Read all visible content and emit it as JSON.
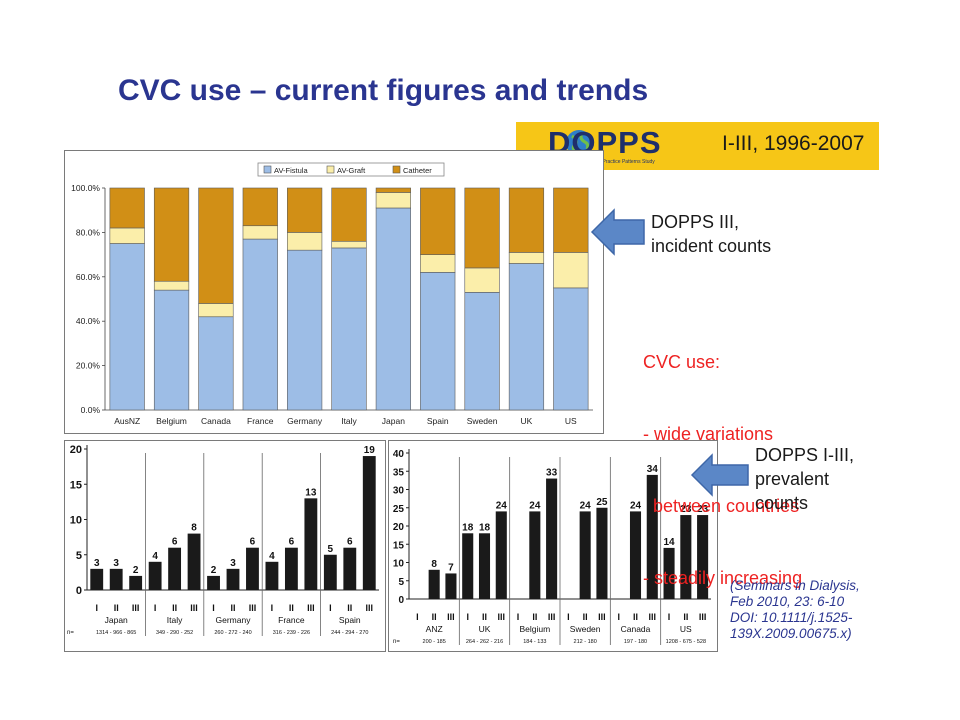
{
  "slide": {
    "title": "CVC use – current figures and trends",
    "logo_text": "DOPPS",
    "logo_subtitle": "Dialysis Outcomes and Practice Patterns Study",
    "logo_range": "I-III, 1996-2007",
    "note_incident": [
      "DOPPS III,",
      "incident counts"
    ],
    "note_cvc": [
      "CVC use:",
      "- wide variations",
      "  between countries",
      "- steadily increasing"
    ],
    "note_prevalent": [
      "DOPPS I-III,",
      "prevalent",
      "counts"
    ],
    "citation": [
      "(Seminars in Dialysis,",
      "Feb 2010, 23: 6-10",
      "DOI: 10.1111/j.1525-",
      "139X.2009.00675.x)"
    ]
  },
  "colors": {
    "fistula": "#9dbde6",
    "graft": "#fbeeaa",
    "catheter": "#d18f16",
    "bars": "#1a1a1a",
    "arrow": "#5b87c7",
    "title": "#2a3590",
    "red": "#ee2222"
  },
  "chart_data": [
    {
      "type": "bar",
      "stacked": true,
      "title": "",
      "categories": [
        "AusNZ",
        "Belgium",
        "Canada",
        "France",
        "Germany",
        "Italy",
        "Japan",
        "Spain",
        "Sweden",
        "UK",
        "US"
      ],
      "series": [
        {
          "name": "AV-Fistula",
          "values": [
            75,
            54,
            42,
            77,
            72,
            73,
            91,
            62,
            53,
            66,
            55
          ]
        },
        {
          "name": "AV-Graft",
          "values": [
            7,
            4,
            6,
            6,
            8,
            3,
            7,
            8,
            11,
            5,
            16
          ]
        },
        {
          "name": "Catheter",
          "values": [
            18,
            42,
            52,
            17,
            20,
            24,
            2,
            30,
            36,
            29,
            29
          ]
        }
      ],
      "y_ticks": [
        "0.0%",
        "20.0%",
        "40.0%",
        "60.0%",
        "80.0%",
        "100.0%"
      ],
      "ylim": [
        0,
        100
      ],
      "legend_position": "top-center",
      "grid": false
    },
    {
      "type": "bar",
      "title": "",
      "groups": [
        {
          "name": "Japan",
          "labels": [
            "I",
            "II",
            "III"
          ],
          "values": [
            3,
            3,
            2
          ],
          "n": "1314 - 966 - 865"
        },
        {
          "name": "Italy",
          "labels": [
            "I",
            "II",
            "III"
          ],
          "values": [
            4,
            6,
            8
          ],
          "n": "349 - 290 - 252"
        },
        {
          "name": "Germany",
          "labels": [
            "I",
            "II",
            "III"
          ],
          "values": [
            2,
            3,
            6
          ],
          "n": "260 - 272 - 240"
        },
        {
          "name": "France",
          "labels": [
            "I",
            "II",
            "III"
          ],
          "values": [
            4,
            6,
            13
          ],
          "n": "316 - 239 - 226"
        },
        {
          "name": "Spain",
          "labels": [
            "I",
            "II",
            "III"
          ],
          "values": [
            5,
            6,
            19
          ],
          "n": "244 - 294 - 270"
        }
      ],
      "n_prefix": "n=",
      "y_ticks": [
        "0",
        "5",
        "10",
        "15",
        "20"
      ],
      "ylim": [
        0,
        20
      ]
    },
    {
      "type": "bar",
      "title": "",
      "groups": [
        {
          "name": "ANZ",
          "labels": [
            "I",
            "II",
            "III"
          ],
          "values": [
            null,
            8,
            7
          ],
          "n": "200 - 185"
        },
        {
          "name": "UK",
          "labels": [
            "I",
            "II",
            "III"
          ],
          "values": [
            18,
            18,
            24
          ],
          "n": "264 - 262 - 216"
        },
        {
          "name": "Belgium",
          "labels": [
            "I",
            "II",
            "III"
          ],
          "values": [
            null,
            24,
            33
          ],
          "n": "184 - 133"
        },
        {
          "name": "Sweden",
          "labels": [
            "I",
            "II",
            "III"
          ],
          "values": [
            null,
            24,
            25
          ],
          "n": "212 - 180"
        },
        {
          "name": "Canada",
          "labels": [
            "I",
            "II",
            "III"
          ],
          "values": [
            null,
            24,
            34
          ],
          "n": "197 - 180"
        },
        {
          "name": "US",
          "labels": [
            "I",
            "II",
            "III"
          ],
          "values": [
            14,
            23,
            23
          ],
          "n": "1208 - 675 - 528"
        }
      ],
      "n_prefix": "n=",
      "y_ticks": [
        "0",
        "5",
        "10",
        "15",
        "20",
        "25",
        "30",
        "35",
        "40"
      ],
      "ylim": [
        0,
        40
      ]
    }
  ]
}
